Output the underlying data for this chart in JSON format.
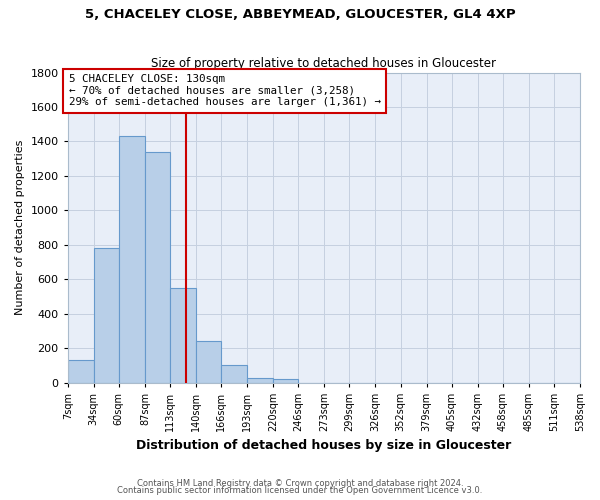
{
  "title1": "5, CHACELEY CLOSE, ABBEYMEAD, GLOUCESTER, GL4 4XP",
  "title2": "Size of property relative to detached houses in Gloucester",
  "xlabel": "Distribution of detached houses by size in Gloucester",
  "ylabel": "Number of detached properties",
  "bin_edges": [
    7,
    34,
    60,
    87,
    113,
    140,
    166,
    193,
    220,
    246,
    273,
    299,
    326,
    352,
    379,
    405,
    432,
    458,
    485,
    511,
    538
  ],
  "bin_labels": [
    "7sqm",
    "34sqm",
    "60sqm",
    "87sqm",
    "113sqm",
    "140sqm",
    "166sqm",
    "193sqm",
    "220sqm",
    "246sqm",
    "273sqm",
    "299sqm",
    "326sqm",
    "352sqm",
    "379sqm",
    "405sqm",
    "432sqm",
    "458sqm",
    "485sqm",
    "511sqm",
    "538sqm"
  ],
  "bar_heights": [
    130,
    780,
    1430,
    1340,
    550,
    245,
    105,
    30,
    20,
    0,
    0,
    0,
    0,
    0,
    0,
    0,
    0,
    0,
    0,
    0
  ],
  "bar_color": "#b8cfe8",
  "bar_edgecolor": "#6699cc",
  "vline_x": 130,
  "vline_color": "#cc0000",
  "annotation_title": "5 CHACELEY CLOSE: 130sqm",
  "annotation_line1": "← 70% of detached houses are smaller (3,258)",
  "annotation_line2": "29% of semi-detached houses are larger (1,361) →",
  "annotation_box_edgecolor": "#cc0000",
  "ylim": [
    0,
    1800
  ],
  "yticks": [
    0,
    200,
    400,
    600,
    800,
    1000,
    1200,
    1400,
    1600,
    1800
  ],
  "footer1": "Contains HM Land Registry data © Crown copyright and database right 2024.",
  "footer2": "Contains public sector information licensed under the Open Government Licence v3.0.",
  "background_color": "#ffffff",
  "plot_bg_color": "#e8eef8",
  "grid_color": "#c5d0e0"
}
